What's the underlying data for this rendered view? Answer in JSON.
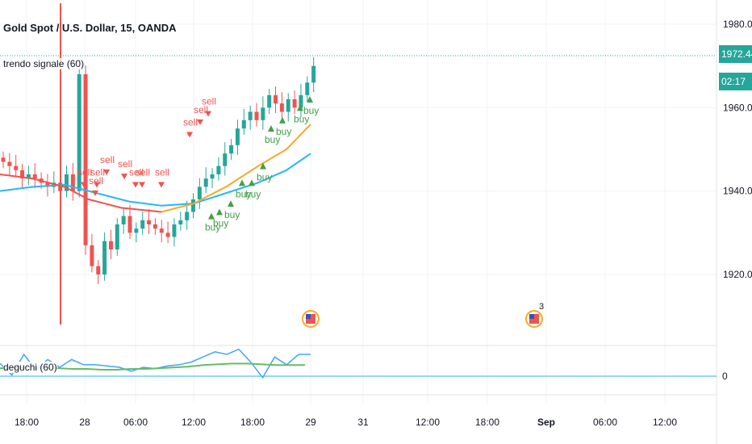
{
  "header": {
    "title": "Gold Spot / U.S. Dollar, 15, OANDA",
    "indicator_label": "trendo signale (60)",
    "oscillator_label": "deguchi (60)"
  },
  "price_tags": {
    "last_price": "1972.442",
    "countdown": "02:17"
  },
  "events": {
    "second_event_count": "3"
  },
  "chart_data": {
    "type": "candlestick",
    "title": "Gold Spot / U.S. Dollar, 15, OANDA",
    "y_axis": {
      "ticks": [
        "1980.000",
        "1960.000",
        "1940.000",
        "1920.000"
      ],
      "ylim": [
        1904,
        1984
      ]
    },
    "x_axis": {
      "ticks": [
        "18:00",
        "28",
        "06:00",
        "12:00",
        "18:00",
        "29",
        "31",
        "12:00",
        "18:00",
        "Sep",
        "06:00",
        "12:00"
      ],
      "bold_ticks": [
        "Sep"
      ]
    },
    "colors": {
      "up": "#26a69a",
      "down": "#ef5350",
      "sell_signal": "#ef5350",
      "buy_signal": "#43a047",
      "ma_fast": "#f9a825",
      "ma_slow": "#29b6f6",
      "osc_line": "#42a5f5",
      "osc_signal": "#66bb6a"
    },
    "candles_close_path": [
      1947,
      1946,
      1945,
      1943,
      1944,
      1943,
      1942,
      1941,
      1942,
      1940,
      1944,
      1940,
      1968,
      1927,
      1922,
      1920,
      1928,
      1926,
      1932,
      1934,
      1930,
      1931,
      1933,
      1932,
      1931,
      1930,
      1929,
      1932,
      1933,
      1935,
      1938,
      1941,
      1943,
      1944,
      1946,
      1949,
      1951,
      1955,
      1957,
      1959,
      1957,
      1960,
      1963,
      1961,
      1959,
      1962,
      1960,
      1963,
      1966,
      1970
    ],
    "sell_signals": [
      {
        "label": "sell",
        "price": 1941
      },
      {
        "label": "sell",
        "price": 1941
      },
      {
        "label": "sell",
        "price": 1944
      },
      {
        "label": "sell",
        "price": 1943
      },
      {
        "label": "sell",
        "price": 1941
      },
      {
        "label": "sell",
        "price": 1941
      },
      {
        "label": "sell",
        "price": 1941
      },
      {
        "label": "sell",
        "price": 1939
      },
      {
        "label": "sell",
        "price": 1953
      },
      {
        "label": "sell",
        "price": 1956
      },
      {
        "label": "sell",
        "price": 1958
      }
    ],
    "buy_signals": [
      {
        "label": "buy",
        "price": 1934
      },
      {
        "label": "buy",
        "price": 1935
      },
      {
        "label": "buy",
        "price": 1937
      },
      {
        "label": "buy",
        "price": 1942
      },
      {
        "label": "buy",
        "price": 1942
      },
      {
        "label": "buy",
        "price": 1946
      },
      {
        "label": "buy",
        "price": 1955
      },
      {
        "label": "buy",
        "price": 1957
      },
      {
        "label": "buy",
        "price": 1960
      },
      {
        "label": "buy",
        "price": 1962
      }
    ],
    "oscillator": {
      "zero_label": "0",
      "series": [
        {
          "name": "",
          "values": [
            3,
            -6,
            10,
            -2,
            6,
            0,
            6,
            2,
            2,
            1,
            0,
            -3,
            0,
            -1,
            1,
            2,
            4,
            8,
            12,
            10,
            14,
            4,
            -8,
            8,
            2,
            10,
            10
          ]
        },
        {
          "name": "",
          "values": [
            2,
            2,
            3,
            2,
            2,
            1,
            1,
            0,
            0,
            1,
            1,
            2,
            3,
            4,
            6,
            7,
            8,
            8,
            7,
            6,
            6,
            6
          ]
        }
      ]
    }
  }
}
